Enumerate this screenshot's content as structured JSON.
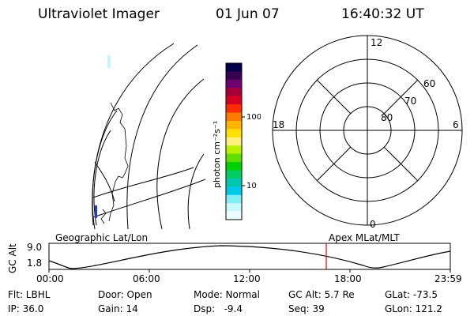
{
  "header": {
    "instrument": "Ultraviolet Imager",
    "date": "01 Jun 07",
    "time": "16:40:32 UT"
  },
  "colorbar": {
    "unit_label": "photon cm⁻²s⁻¹",
    "tick_labels": [
      "100",
      "10"
    ],
    "colors": [
      "#00004a",
      "#3a0050",
      "#6e0070",
      "#a8003a",
      "#d80020",
      "#ff2a00",
      "#ff7a00",
      "#ffb400",
      "#ffe000",
      "#fff07a",
      "#b8f000",
      "#60e000",
      "#00d000",
      "#00cc60",
      "#00c8b0",
      "#00c8e8",
      "#80ecf4",
      "#c8f8fc",
      "#ecfcfe"
    ]
  },
  "polar_plot": {
    "mlt_labels": {
      "top": "12",
      "left": "18",
      "right": "6",
      "bottom": "0"
    },
    "lat_labels": [
      "60",
      "70",
      "80"
    ]
  },
  "timeline": {
    "left_label": "Geographic Lat/Lon",
    "right_label": "Apex MLat/MLT",
    "ylabel": "GC Alt",
    "ytick_top": "9.0",
    "ytick_bottom": "1.8",
    "time_ticks": [
      "00:00",
      "06:00",
      "12:00",
      "18:00",
      "23:59"
    ],
    "marker_color": "#e00000"
  },
  "info": {
    "flt": "Flt: LBHL",
    "ip": "IP: 36.0",
    "door": "Door: Open",
    "gain": "Gain: 14",
    "mode": "Mode: Normal",
    "dsp": "Dsp:   -9.4",
    "gc_alt": "GC Alt: 5.7 Re",
    "seq": "Seq: 39",
    "glat": "GLat: -73.5",
    "glon": "GLon: 121.2"
  }
}
